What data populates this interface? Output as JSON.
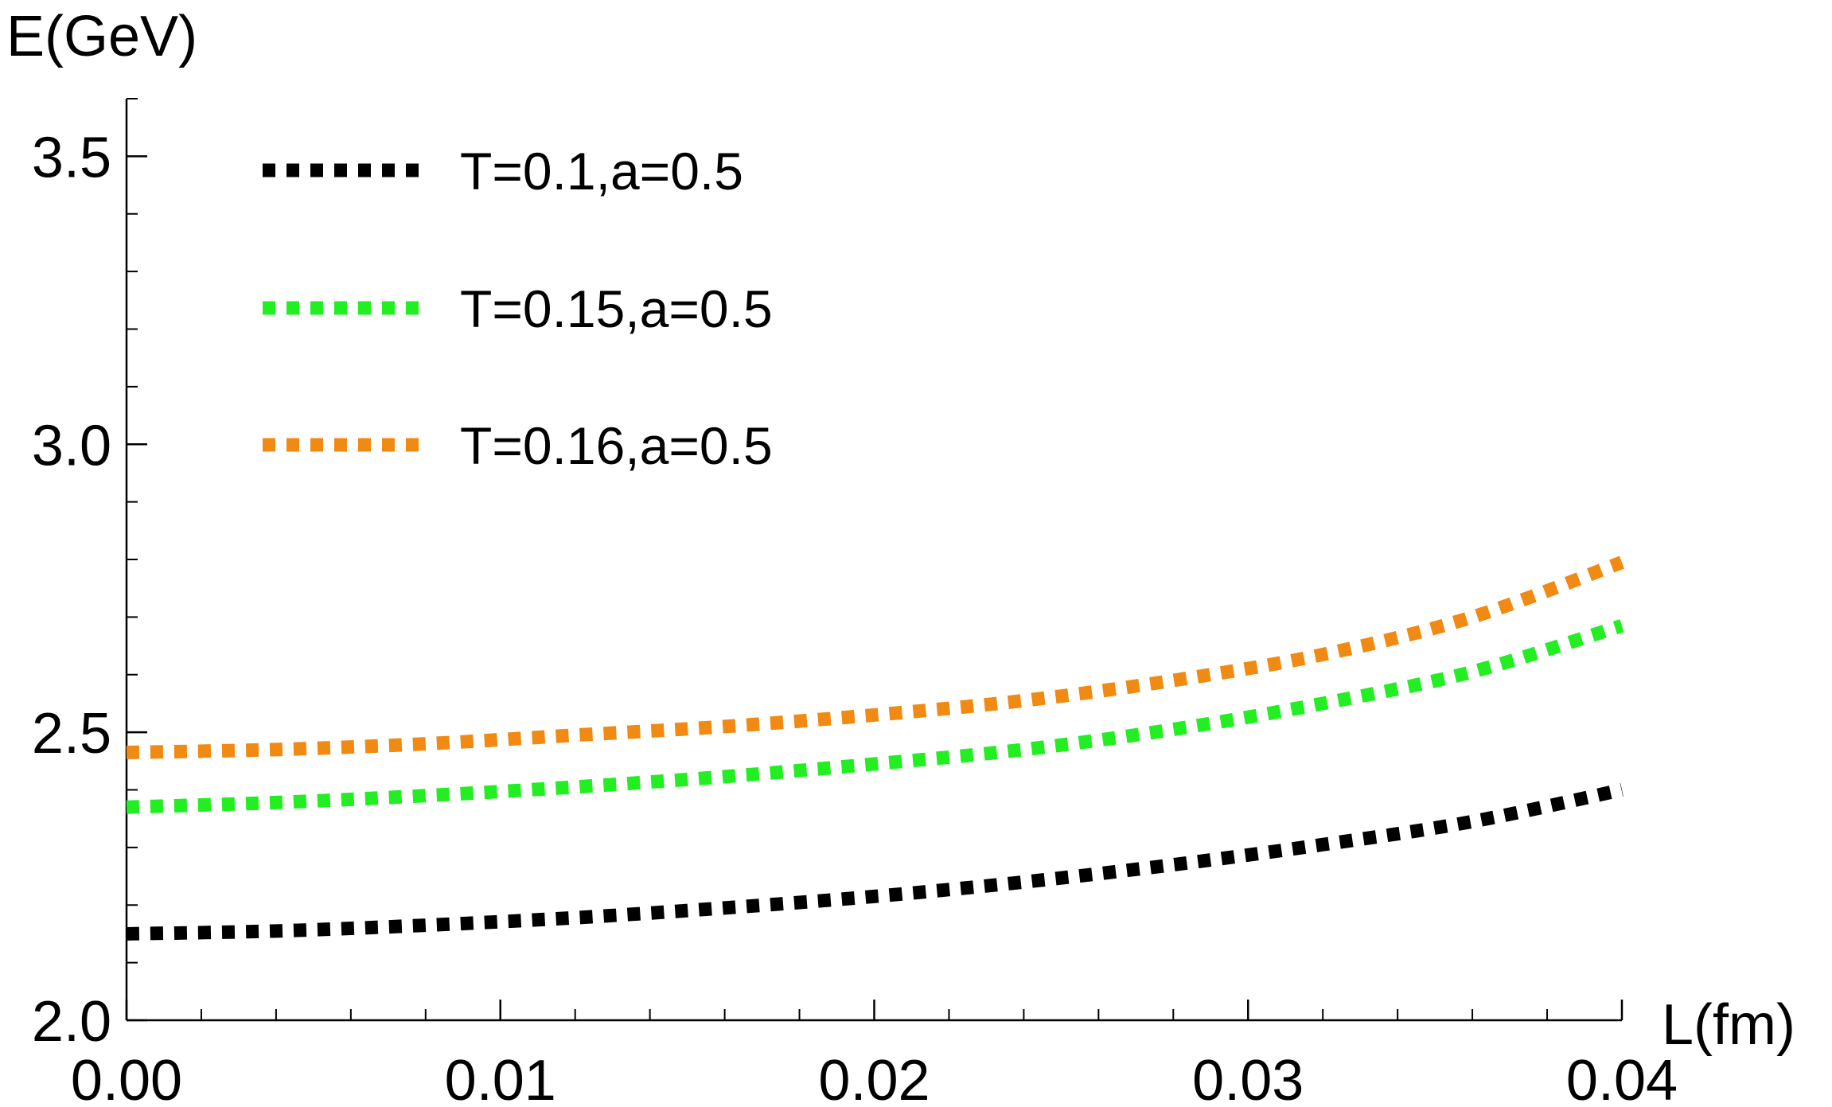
{
  "chart_data": {
    "type": "line",
    "title": "",
    "xlabel": "L(fm)",
    "ylabel": "E(GeV)",
    "xlim": [
      0.0,
      0.04
    ],
    "ylim": [
      2.0,
      3.6
    ],
    "x_ticks": [
      0.0,
      0.01,
      0.02,
      0.03,
      0.04
    ],
    "x_tick_labels": [
      "0.00",
      "0.01",
      "0.02",
      "0.03",
      "0.04"
    ],
    "x_minor_step": 0.002,
    "y_ticks": [
      2.0,
      2.5,
      3.0,
      3.5
    ],
    "y_tick_labels": [
      "2.0",
      "2.5",
      "3.0",
      "3.5"
    ],
    "y_minor_step": 0.1,
    "grid": false,
    "legend_position": "top-left",
    "series": [
      {
        "name": "T=0.1,a=0.5",
        "color": "#000000",
        "style": "dotted",
        "x": [
          0.0,
          0.004,
          0.008,
          0.012,
          0.016,
          0.02,
          0.024,
          0.028,
          0.032,
          0.036,
          0.04
        ],
        "y": [
          2.15,
          2.155,
          2.165,
          2.178,
          2.195,
          2.215,
          2.24,
          2.27,
          2.305,
          2.345,
          2.4
        ]
      },
      {
        "name": "T=0.15,a=0.5",
        "color": "#22ee22",
        "style": "dotted",
        "x": [
          0.0,
          0.004,
          0.008,
          0.012,
          0.016,
          0.02,
          0.024,
          0.028,
          0.032,
          0.036,
          0.04
        ],
        "y": [
          2.37,
          2.378,
          2.39,
          2.405,
          2.423,
          2.445,
          2.47,
          2.505,
          2.55,
          2.605,
          2.685
        ]
      },
      {
        "name": "T=0.16,a=0.5",
        "color": "#f08a12",
        "style": "dotted",
        "x": [
          0.0,
          0.004,
          0.008,
          0.012,
          0.016,
          0.02,
          0.024,
          0.028,
          0.032,
          0.036,
          0.04
        ],
        "y": [
          2.465,
          2.47,
          2.48,
          2.495,
          2.51,
          2.53,
          2.555,
          2.59,
          2.635,
          2.7,
          2.795
        ]
      }
    ]
  }
}
